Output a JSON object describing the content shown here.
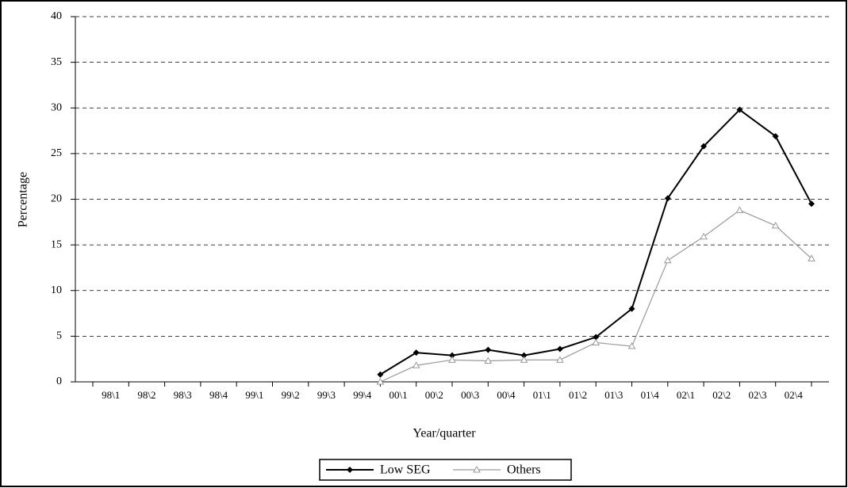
{
  "chart_data": {
    "type": "line",
    "x_label": "Year/quarter",
    "y_label": "Percentage",
    "categories": [
      "98\\1",
      "98\\2",
      "98\\3",
      "98\\4",
      "99\\1",
      "99\\2",
      "99\\3",
      "99\\4",
      "00\\1",
      "00\\2",
      "00\\3",
      "00\\4",
      "01\\1",
      "01\\2",
      "01\\3",
      "01\\4",
      "02\\1",
      "02\\2",
      "02\\3",
      "02\\4",
      null
    ],
    "series": [
      {
        "name": "Low SEG",
        "color": "#000000",
        "values": [
          null,
          null,
          null,
          null,
          null,
          null,
          null,
          null,
          0.8,
          3.2,
          2.9,
          3.5,
          2.9,
          3.6,
          4.9,
          8.0,
          20.1,
          25.8,
          29.8,
          26.9,
          19.5
        ]
      },
      {
        "name": "Others",
        "color": "#9a9a9a",
        "values": [
          null,
          null,
          null,
          null,
          null,
          null,
          null,
          null,
          0,
          1.8,
          2.4,
          2.3,
          2.4,
          2.4,
          4.3,
          3.9,
          13.3,
          15.9,
          18.8,
          17.1,
          13.5
        ]
      }
    ],
    "ylim": [
      0,
      40
    ],
    "yticks": [
      0,
      5,
      10,
      15,
      20,
      25,
      30,
      35,
      40
    ],
    "grid": true,
    "legend": "bottom"
  }
}
